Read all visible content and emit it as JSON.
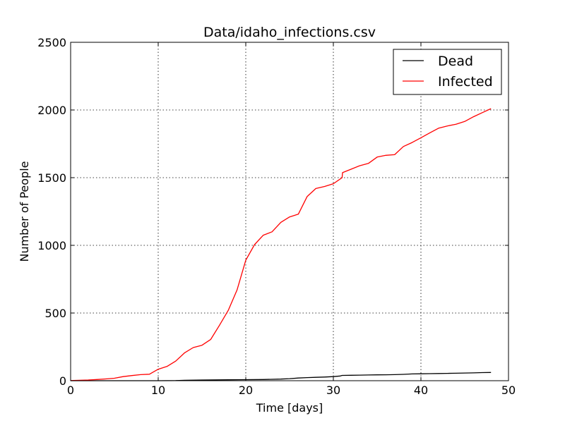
{
  "chart_data": {
    "type": "line",
    "title": "Data/idaho_infections.csv",
    "xlabel": "Time [days]",
    "ylabel": "Number of People",
    "xlim": [
      0,
      50
    ],
    "ylim": [
      0,
      2500
    ],
    "xticks": [
      0,
      10,
      20,
      30,
      40,
      50
    ],
    "yticks": [
      0,
      500,
      1000,
      1500,
      2000,
      2500
    ],
    "grid": true,
    "legend_position": "top-right",
    "series": [
      {
        "name": "Dead",
        "color": "#000000",
        "x": [
          0,
          5,
          10,
          12,
          13,
          15,
          18,
          20,
          22,
          24,
          25,
          26,
          27,
          28,
          29,
          30,
          30.8,
          31,
          32,
          33,
          34,
          35,
          36,
          37,
          38,
          39,
          40,
          41,
          42,
          43,
          44,
          45,
          46,
          47,
          48
        ],
        "y": [
          0,
          0,
          0,
          1,
          3,
          5,
          7,
          8,
          9,
          12,
          15,
          20,
          23,
          25,
          27,
          30,
          35,
          39,
          40,
          41,
          42,
          43,
          44,
          45,
          47,
          50,
          51,
          52,
          53,
          54,
          55,
          57,
          58,
          60,
          61
        ]
      },
      {
        "name": "Infected",
        "color": "#ff0000",
        "x": [
          0,
          1,
          2,
          3,
          4,
          5,
          6,
          7,
          8,
          9,
          10,
          11,
          12,
          13,
          14,
          15,
          16,
          17,
          18,
          19,
          20,
          21,
          22,
          23,
          24,
          25,
          26,
          27,
          28,
          29,
          30,
          31,
          31.05,
          32,
          33,
          34,
          35,
          36,
          37,
          38,
          39,
          40,
          41,
          42,
          43,
          44,
          45,
          46,
          47,
          48
        ],
        "y": [
          1,
          3,
          5,
          9,
          13,
          18,
          30,
          38,
          45,
          48,
          85,
          105,
          145,
          205,
          245,
          262,
          305,
          410,
          520,
          670,
          890,
          1005,
          1075,
          1100,
          1170,
          1210,
          1230,
          1360,
          1420,
          1435,
          1455,
          1500,
          1537,
          1562,
          1588,
          1605,
          1652,
          1665,
          1670,
          1730,
          1760,
          1795,
          1830,
          1865,
          1882,
          1895,
          1915,
          1950,
          1980,
          2010
        ]
      }
    ]
  }
}
